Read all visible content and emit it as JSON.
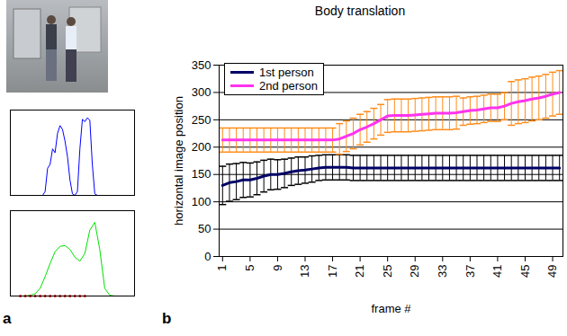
{
  "chart_data": [
    {
      "type": "line",
      "annotations": [
        "a"
      ],
      "x": [
        0,
        2,
        4,
        6,
        8,
        10,
        12,
        14,
        16,
        18,
        20,
        22,
        24,
        26,
        28,
        30,
        32,
        34,
        36,
        38,
        40,
        42,
        44,
        46,
        48,
        50,
        52,
        54,
        56,
        58,
        60,
        62,
        64,
        66,
        68,
        70,
        72,
        74,
        76,
        78,
        80,
        82,
        84,
        86,
        88,
        90,
        92,
        94,
        96,
        98,
        100
      ],
      "series": [
        {
          "color": "#0000ff",
          "values": [
            0,
            0,
            0,
            0,
            0,
            0,
            0,
            0,
            0,
            0,
            0,
            0,
            0,
            0,
            0.05,
            0.35,
            0.4,
            0.6,
            0.55,
            0.8,
            0.9,
            0.85,
            0.7,
            0.5,
            0.2,
            0.02,
            0,
            0.05,
            0.6,
            0.98,
            0.95,
            1.0,
            0.97,
            0.4,
            0.02,
            0,
            0,
            0,
            0,
            0,
            0,
            0,
            0,
            0,
            0,
            0,
            0,
            0,
            0,
            0,
            0
          ]
        }
      ],
      "xlim": [
        0,
        100
      ],
      "ylim": [
        0,
        1.1
      ],
      "tick_labels": false
    },
    {
      "type": "line",
      "x": [
        0,
        4,
        8,
        12,
        16,
        20,
        24,
        28,
        32,
        36,
        40,
        44,
        48,
        52,
        56,
        60,
        64,
        68,
        72,
        76,
        80,
        84,
        88,
        92,
        96,
        100
      ],
      "series": [
        {
          "color": "#00e000",
          "values": [
            0,
            0,
            0,
            0,
            0.01,
            0.03,
            0.1,
            0.25,
            0.42,
            0.57,
            0.64,
            0.65,
            0.6,
            0.5,
            0.45,
            0.55,
            0.85,
            0.95,
            0.6,
            0.1,
            0.01,
            0,
            0,
            0,
            0,
            0
          ]
        },
        {
          "type": "scatter",
          "color": "#ff0000",
          "marker": "dot",
          "values": [
            null,
            null,
            0,
            0,
            0,
            0,
            0,
            0,
            0,
            0,
            0,
            0,
            0,
            0,
            0,
            0,
            null,
            null,
            null,
            null,
            null,
            null,
            null,
            null,
            null,
            null
          ]
        }
      ],
      "xlim": [
        0,
        100
      ],
      "ylim": [
        0,
        1.1
      ],
      "tick_labels": false
    },
    {
      "type": "line",
      "title": "Body translation",
      "x_label": "frame #",
      "y_label": "horizontal image position",
      "annotations": [
        "b"
      ],
      "x": [
        1,
        2,
        3,
        4,
        5,
        6,
        7,
        8,
        9,
        10,
        11,
        12,
        13,
        14,
        15,
        16,
        17,
        18,
        19,
        20,
        21,
        22,
        23,
        24,
        25,
        26,
        27,
        28,
        29,
        30,
        31,
        32,
        33,
        34,
        35,
        36,
        37,
        38,
        39,
        40,
        41,
        42,
        43,
        44,
        45,
        46,
        47,
        48,
        49,
        50
      ],
      "series": [
        {
          "name": "1st person",
          "color": "#000066",
          "values": [
            130,
            135,
            137,
            140,
            140,
            143,
            147,
            150,
            150,
            152,
            155,
            157,
            158,
            160,
            162,
            163,
            163,
            163,
            163,
            162,
            162,
            162,
            162,
            162,
            162,
            162,
            162,
            162,
            162,
            162,
            162,
            162,
            162,
            162,
            162,
            162,
            162,
            162,
            162,
            162,
            162,
            162,
            162,
            162,
            162,
            162,
            162,
            162,
            162,
            162
          ],
          "error": [
            35,
            34,
            33,
            32,
            31,
            30,
            29,
            28,
            27,
            26,
            25,
            25,
            24,
            24,
            23,
            23,
            23,
            23,
            23,
            23,
            23,
            23,
            23,
            23,
            23,
            23,
            23,
            23,
            23,
            23,
            23,
            23,
            23,
            23,
            23,
            23,
            23,
            23,
            23,
            23,
            23,
            23,
            23,
            23,
            23,
            23,
            23,
            23,
            23,
            23
          ]
        },
        {
          "name": "2nd person",
          "color": "#ff33ee",
          "values": [
            213,
            213,
            213,
            213,
            213,
            213,
            213,
            213,
            213,
            213,
            213,
            213,
            213,
            213,
            213,
            213,
            213,
            215,
            220,
            225,
            232,
            237,
            243,
            250,
            257,
            258,
            258,
            258,
            259,
            260,
            261,
            262,
            262,
            262,
            263,
            265,
            267,
            268,
            270,
            272,
            272,
            275,
            280,
            283,
            285,
            288,
            290,
            293,
            297,
            300
          ],
          "error": [
            22,
            22,
            22,
            22,
            22,
            22,
            22,
            22,
            22,
            22,
            22,
            22,
            22,
            22,
            22,
            22,
            22,
            28,
            28,
            28,
            28,
            28,
            28,
            28,
            30,
            30,
            30,
            30,
            30,
            30,
            30,
            30,
            30,
            30,
            30,
            25,
            25,
            25,
            25,
            25,
            25,
            25,
            40,
            40,
            40,
            40,
            40,
            40,
            40,
            40
          ]
        }
      ],
      "xlim": [
        0.5,
        50.5
      ],
      "xticks": [
        1,
        5,
        9,
        13,
        17,
        21,
        25,
        29,
        33,
        37,
        41,
        45,
        49
      ],
      "ylim": [
        0,
        350
      ],
      "yticks": [
        0,
        50,
        100,
        150,
        200,
        250,
        300,
        350
      ],
      "grid": true,
      "legend": "top-left"
    }
  ]
}
